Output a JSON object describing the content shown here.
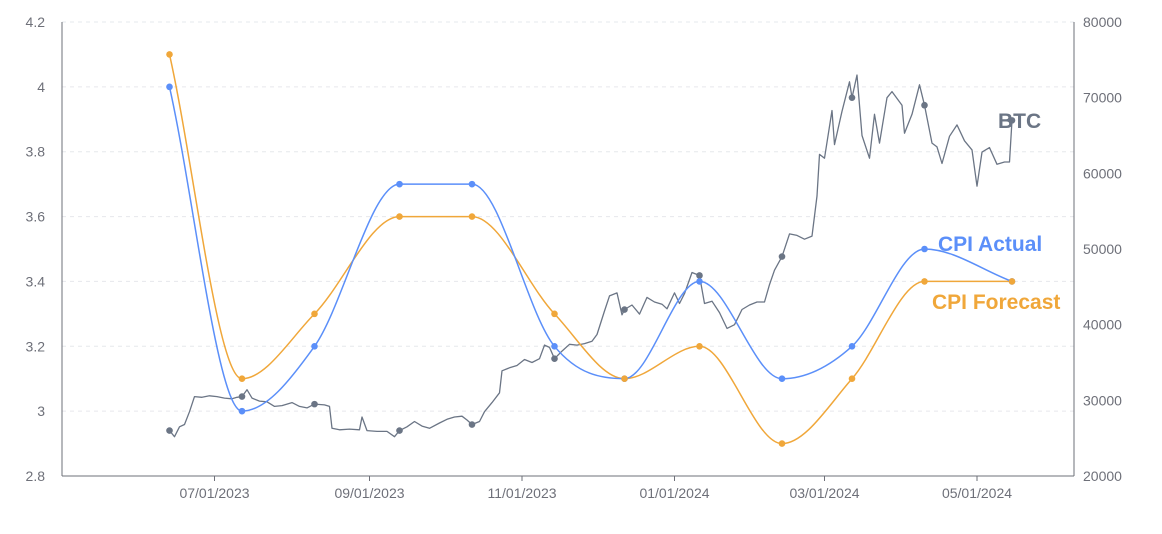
{
  "chart_data": {
    "type": "line",
    "title": "",
    "xlabel": "",
    "ylabel": "",
    "x_ticks": [
      "07/01/2023",
      "09/01/2023",
      "11/01/2023",
      "01/01/2024",
      "03/01/2024",
      "05/01/2024"
    ],
    "y_left": {
      "ticks": [
        "2.8",
        "3",
        "3.2",
        "3.4",
        "3.6",
        "3.8",
        "4",
        "4.2"
      ],
      "range": [
        2.8,
        4.2
      ]
    },
    "y_right": {
      "ticks": [
        "20000",
        "30000",
        "40000",
        "50000",
        "60000",
        "70000",
        "80000"
      ],
      "range": [
        20000,
        80000
      ]
    },
    "grid": "horizontal dashed",
    "cpi_dates": [
      "2023-06-13",
      "2023-07-12",
      "2023-08-10",
      "2023-09-13",
      "2023-10-12",
      "2023-11-14",
      "2023-12-12",
      "2024-01-11",
      "2024-02-13",
      "2024-03-12",
      "2024-04-10",
      "2024-05-15"
    ],
    "series": [
      {
        "name": "CPI Actual",
        "color": "#5b8ff9",
        "axis": "left",
        "values": [
          4.0,
          3.0,
          3.2,
          3.7,
          3.7,
          3.2,
          3.1,
          3.4,
          3.1,
          3.2,
          3.5,
          3.4
        ]
      },
      {
        "name": "CPI Forecast",
        "color": "#f0a73a",
        "axis": "left",
        "values": [
          4.1,
          3.1,
          3.3,
          3.6,
          3.6,
          3.3,
          3.1,
          3.2,
          2.9,
          3.1,
          3.4,
          3.4
        ]
      },
      {
        "name": "BTC",
        "color": "#6b7585",
        "axis": "right",
        "values": [
          26000,
          30500,
          29500,
          26000,
          26800,
          35500,
          42000,
          46500,
          49000,
          70000,
          69000,
          67000
        ]
      }
    ],
    "btc_price_path": [
      [
        "2023-06-13",
        26000
      ],
      [
        "2023-06-15",
        25200
      ],
      [
        "2023-06-17",
        26500
      ],
      [
        "2023-06-19",
        26800
      ],
      [
        "2023-06-21",
        28500
      ],
      [
        "2023-06-23",
        30500
      ],
      [
        "2023-06-26",
        30400
      ],
      [
        "2023-06-29",
        30600
      ],
      [
        "2023-07-02",
        30500
      ],
      [
        "2023-07-05",
        30300
      ],
      [
        "2023-07-08",
        30200
      ],
      [
        "2023-07-10",
        30400
      ],
      [
        "2023-07-12",
        30500
      ],
      [
        "2023-07-14",
        31400
      ],
      [
        "2023-07-16",
        30300
      ],
      [
        "2023-07-19",
        29900
      ],
      [
        "2023-07-22",
        29800
      ],
      [
        "2023-07-25",
        29200
      ],
      [
        "2023-07-28",
        29300
      ],
      [
        "2023-08-01",
        29700
      ],
      [
        "2023-08-04",
        29200
      ],
      [
        "2023-08-07",
        29000
      ],
      [
        "2023-08-10",
        29500
      ],
      [
        "2023-08-14",
        29400
      ],
      [
        "2023-08-16",
        29200
      ],
      [
        "2023-08-17",
        26300
      ],
      [
        "2023-08-20",
        26100
      ],
      [
        "2023-08-24",
        26200
      ],
      [
        "2023-08-28",
        26100
      ],
      [
        "2023-08-29",
        27800
      ],
      [
        "2023-08-31",
        26000
      ],
      [
        "2023-09-04",
        25900
      ],
      [
        "2023-09-08",
        25900
      ],
      [
        "2023-09-11",
        25200
      ],
      [
        "2023-09-13",
        26000
      ],
      [
        "2023-09-16",
        26500
      ],
      [
        "2023-09-19",
        27200
      ],
      [
        "2023-09-22",
        26600
      ],
      [
        "2023-09-25",
        26300
      ],
      [
        "2023-09-29",
        27000
      ],
      [
        "2023-10-02",
        27500
      ],
      [
        "2023-10-05",
        27800
      ],
      [
        "2023-10-08",
        27900
      ],
      [
        "2023-10-10",
        27400
      ],
      [
        "2023-10-12",
        26800
      ],
      [
        "2023-10-15",
        27200
      ],
      [
        "2023-10-17",
        28500
      ],
      [
        "2023-10-20",
        29700
      ],
      [
        "2023-10-23",
        31000
      ],
      [
        "2023-10-24",
        33900
      ],
      [
        "2023-10-27",
        34300
      ],
      [
        "2023-10-30",
        34600
      ],
      [
        "2023-11-02",
        35400
      ],
      [
        "2023-11-05",
        35000
      ],
      [
        "2023-11-08",
        35500
      ],
      [
        "2023-11-10",
        37300
      ],
      [
        "2023-11-12",
        37000
      ],
      [
        "2023-11-14",
        35500
      ],
      [
        "2023-11-17",
        36500
      ],
      [
        "2023-11-20",
        37400
      ],
      [
        "2023-11-23",
        37300
      ],
      [
        "2023-11-26",
        37500
      ],
      [
        "2023-11-29",
        37800
      ],
      [
        "2023-12-01",
        38700
      ],
      [
        "2023-12-04",
        41800
      ],
      [
        "2023-12-06",
        43800
      ],
      [
        "2023-12-09",
        44200
      ],
      [
        "2023-12-11",
        41300
      ],
      [
        "2023-12-12",
        42000
      ],
      [
        "2023-12-15",
        42600
      ],
      [
        "2023-12-18",
        41400
      ],
      [
        "2023-12-21",
        43600
      ],
      [
        "2023-12-24",
        43000
      ],
      [
        "2023-12-27",
        42700
      ],
      [
        "2023-12-29",
        42100
      ],
      [
        "2024-01-01",
        44200
      ],
      [
        "2024-01-03",
        42800
      ],
      [
        "2024-01-05",
        44100
      ],
      [
        "2024-01-08",
        46900
      ],
      [
        "2024-01-11",
        46500
      ],
      [
        "2024-01-13",
        42800
      ],
      [
        "2024-01-16",
        43100
      ],
      [
        "2024-01-19",
        41600
      ],
      [
        "2024-01-22",
        39500
      ],
      [
        "2024-01-25",
        40000
      ],
      [
        "2024-01-28",
        42000
      ],
      [
        "2024-01-31",
        42600
      ],
      [
        "2024-02-03",
        43000
      ],
      [
        "2024-02-06",
        43000
      ],
      [
        "2024-02-08",
        45300
      ],
      [
        "2024-02-10",
        47200
      ],
      [
        "2024-02-13",
        49000
      ],
      [
        "2024-02-16",
        52000
      ],
      [
        "2024-02-19",
        51800
      ],
      [
        "2024-02-22",
        51300
      ],
      [
        "2024-02-25",
        51700
      ],
      [
        "2024-02-27",
        57000
      ],
      [
        "2024-02-28",
        62500
      ],
      [
        "2024-03-01",
        62000
      ],
      [
        "2024-03-04",
        68300
      ],
      [
        "2024-03-05",
        63800
      ],
      [
        "2024-03-08",
        68200
      ],
      [
        "2024-03-11",
        72100
      ],
      [
        "2024-03-12",
        70000
      ],
      [
        "2024-03-14",
        73000
      ],
      [
        "2024-03-16",
        65000
      ],
      [
        "2024-03-19",
        62000
      ],
      [
        "2024-03-21",
        67800
      ],
      [
        "2024-03-23",
        64000
      ],
      [
        "2024-03-26",
        70000
      ],
      [
        "2024-03-28",
        70800
      ],
      [
        "2024-04-01",
        69000
      ],
      [
        "2024-04-02",
        65300
      ],
      [
        "2024-04-05",
        67800
      ],
      [
        "2024-04-08",
        71700
      ],
      [
        "2024-04-10",
        69000
      ],
      [
        "2024-04-13",
        64000
      ],
      [
        "2024-04-15",
        63500
      ],
      [
        "2024-04-17",
        61300
      ],
      [
        "2024-04-20",
        64900
      ],
      [
        "2024-04-23",
        66400
      ],
      [
        "2024-04-26",
        64300
      ],
      [
        "2024-04-29",
        63100
      ],
      [
        "2024-05-01",
        58300
      ],
      [
        "2024-05-03",
        62800
      ],
      [
        "2024-05-06",
        63400
      ],
      [
        "2024-05-09",
        61200
      ],
      [
        "2024-05-12",
        61500
      ],
      [
        "2024-05-14",
        61500
      ],
      [
        "2024-05-15",
        67000
      ]
    ]
  }
}
